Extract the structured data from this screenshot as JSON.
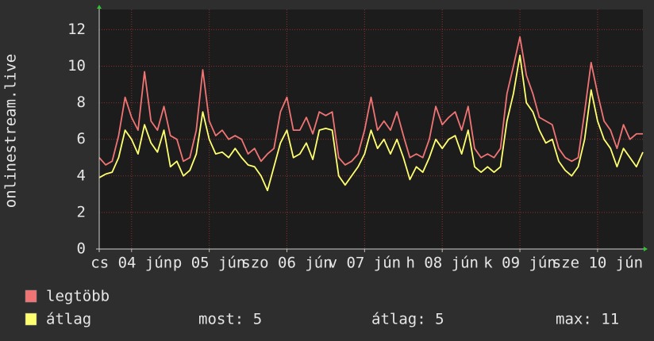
{
  "chart_data": {
    "type": "line",
    "ylabel": "onlinestream.live",
    "x": [
      0,
      2,
      4,
      6,
      8,
      10,
      12,
      14,
      16,
      18,
      20,
      22,
      24,
      26,
      28,
      30,
      32,
      34,
      36,
      38,
      40,
      42,
      44,
      46,
      48,
      50,
      52,
      54,
      56,
      58,
      60,
      62,
      64,
      66,
      68,
      70,
      72,
      74,
      76,
      78,
      80,
      82,
      84,
      86,
      88,
      90,
      92,
      94,
      96,
      98,
      100,
      102,
      104,
      106,
      108,
      110,
      112,
      114,
      116,
      118,
      120,
      122,
      124,
      126,
      128,
      130,
      132,
      134,
      136,
      138,
      140,
      142,
      144,
      146,
      148,
      150,
      152,
      154,
      156,
      158,
      160,
      162,
      164,
      166,
      168
    ],
    "series": [
      {
        "name": "legtöbb",
        "color": "#f07474",
        "values": [
          5,
          4.6,
          4.8,
          6.2,
          8.3,
          7.2,
          6.5,
          9.7,
          7,
          6.5,
          7.8,
          6.2,
          6,
          4.8,
          5,
          6.5,
          9.8,
          7,
          6.2,
          6.5,
          6,
          6.2,
          6,
          5.2,
          5.5,
          4.8,
          5.2,
          5.5,
          7.5,
          8.3,
          6.5,
          6.5,
          7.2,
          6.3,
          7.5,
          7.3,
          7.5,
          5,
          4.6,
          4.8,
          5.2,
          6.5,
          8.3,
          6.5,
          7,
          6.5,
          7.5,
          6.2,
          5,
          5.2,
          5,
          6,
          7.8,
          6.8,
          7.2,
          7.5,
          6.5,
          7.8,
          5.5,
          5,
          5.2,
          5,
          5.5,
          8.5,
          10,
          11.6,
          9.5,
          8.5,
          7.2,
          7,
          6.8,
          5.5,
          5,
          4.8,
          5,
          7.5,
          10.2,
          8.5,
          7,
          6.5,
          5.5,
          6.8,
          6,
          6.3,
          6.3
        ]
      },
      {
        "name": "átlag",
        "color": "#ffff70",
        "values": [
          3.9,
          4.1,
          4.2,
          5,
          6.5,
          6,
          5.2,
          6.8,
          5.8,
          5.3,
          6.5,
          4.5,
          4.8,
          4,
          4.3,
          5.2,
          7.5,
          6,
          5.2,
          5.3,
          5,
          5.5,
          5,
          4.6,
          4.5,
          4,
          3.2,
          4.5,
          5.8,
          6.5,
          5,
          5.2,
          5.8,
          4.9,
          6.5,
          6.6,
          6.5,
          4,
          3.5,
          4,
          4.5,
          5.2,
          6.5,
          5.5,
          6,
          5.2,
          6,
          5,
          3.8,
          4.5,
          4.2,
          5,
          6,
          5.5,
          6,
          6.2,
          5.2,
          6.5,
          4.5,
          4.2,
          4.5,
          4.2,
          4.5,
          7,
          8.5,
          10.6,
          8,
          7.5,
          6.5,
          5.8,
          6,
          4.8,
          4.3,
          4,
          4.5,
          6,
          8.7,
          7,
          6,
          5.5,
          4.5,
          5.5,
          5,
          4.5,
          5.3
        ]
      }
    ],
    "xlim": [
      0,
      168
    ],
    "xticks": [
      {
        "value": 10,
        "label": "cs 04 jún"
      },
      {
        "value": 34,
        "label": "p 05 jún"
      },
      {
        "value": 58,
        "label": "szo 06 jún"
      },
      {
        "value": 82,
        "label": "v 07 jún"
      },
      {
        "value": 106,
        "label": "h 08 jún"
      },
      {
        "value": 130,
        "label": "k 09 jún"
      },
      {
        "value": 154,
        "label": "sze 10 jún"
      }
    ],
    "ylim": [
      0,
      13.1
    ],
    "yticks": [
      0,
      2,
      4,
      6,
      8,
      10,
      12
    ],
    "grid": true,
    "stats": [
      {
        "label": "most:",
        "value": 5
      },
      {
        "label": "átlag:",
        "value": 5
      },
      {
        "label": "max:",
        "value": 11
      }
    ]
  }
}
